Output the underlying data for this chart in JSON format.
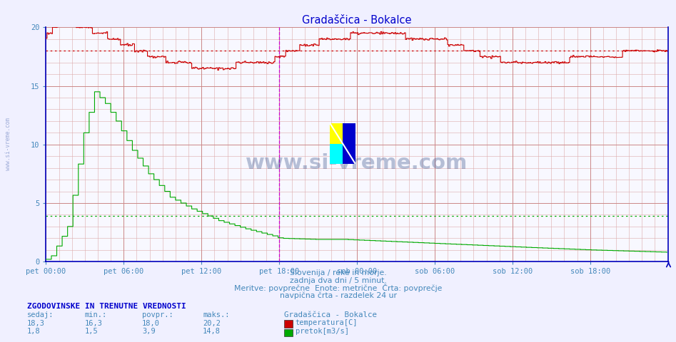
{
  "title": "Gradaščica - Bokalce",
  "title_color": "#0000cc",
  "bg_color": "#f0f0ff",
  "plot_bg_color": "#f8f8ff",
  "x_tick_labels": [
    "pet 00:00",
    "pet 06:00",
    "pet 12:00",
    "pet 18:00",
    "sob 00:00",
    "sob 06:00",
    "sob 12:00",
    "sob 18:00"
  ],
  "x_tick_positions": [
    0,
    72,
    144,
    216,
    288,
    360,
    432,
    504
  ],
  "total_points": 576,
  "y_min": 0,
  "y_max": 20,
  "y_ticks": [
    0,
    5,
    10,
    15,
    20
  ],
  "temp_avg": 18.0,
  "flow_avg": 3.9,
  "temp_color": "#cc0000",
  "flow_color": "#00aa00",
  "vline_color": "#cc00cc",
  "vline_pos": 216,
  "watermark_text": "www.si-vreme.com",
  "subtitle1": "Slovenija / reke in morje.",
  "subtitle2": "zadnja dva dni / 5 minut.",
  "subtitle3": "Meritve: povprečne  Enote: metrične  Črta: povprečje",
  "subtitle4": "navpična črta - razdelek 24 ur",
  "subtitle_color": "#4488bb",
  "footer_header": "ZGODOVINSKE IN TRENUTNE VREDNOSTI",
  "footer_color": "#0000cc",
  "footer_label_color": "#4488bb",
  "col_headers": [
    "sedaj:",
    "min.:",
    "povpr.:",
    "maks.:"
  ],
  "col_station": "Gradaščica - Bokalce",
  "row1_vals": [
    "18,3",
    "16,3",
    "18,0",
    "20,2"
  ],
  "row2_vals": [
    "1,8",
    "1,5",
    "3,9",
    "14,8"
  ],
  "legend1": "temperatura[C]",
  "legend2": "pretok[m3/s]",
  "legend_color1": "#cc0000",
  "legend_color2": "#00aa00",
  "axis_color": "#0000bb",
  "tick_color": "#4488bb",
  "grid_minor_color": "#ddaaaa",
  "grid_major_color": "#cc8888",
  "left_watermark": "www.si-vreme.com"
}
